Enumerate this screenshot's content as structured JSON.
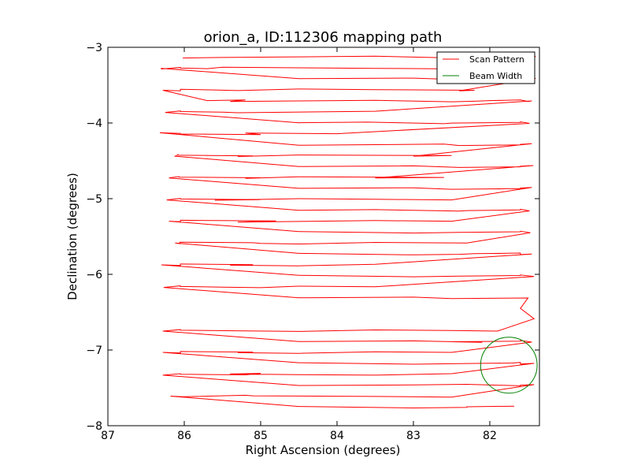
{
  "chart_data": {
    "type": "line",
    "title": "orion_a, ID:112306 mapping path",
    "xlabel": "Right Ascension (degrees)",
    "ylabel": "Declination (degrees)",
    "xlim": [
      87.0,
      81.35
    ],
    "ylim": [
      -8.0,
      -3.0
    ],
    "x_ticks": [
      87,
      86,
      85,
      84,
      83,
      82
    ],
    "y_ticks": [
      -3,
      -4,
      -5,
      -6,
      -7,
      -8
    ],
    "grid": false,
    "legend_position": "top-right",
    "colors": {
      "scan": "#ff0000",
      "beam": "#008000"
    },
    "series": [
      {
        "name": "Scan Pattern",
        "x": [
          86.02,
          85.5,
          84.5,
          83.5,
          82.6,
          82.4,
          81.4,
          82.3,
          83.5,
          84.5,
          85.5,
          85.7,
          86.05,
          86.05,
          86.3,
          86.3,
          84.5,
          83.0,
          82.4,
          81.5,
          81.4,
          82.4,
          82.2,
          83.5,
          84.5,
          85.3,
          85.6,
          86.05,
          86.05,
          86.28,
          85.7,
          85.2,
          85.4,
          84.5,
          83.5,
          82.5,
          82.2,
          82.0,
          81.6,
          81.5,
          81.45,
          83.5,
          85.3,
          85.5,
          86.05,
          86.05,
          86.25,
          84.5,
          83.6,
          82.6,
          82.5,
          81.6,
          81.6,
          81.48,
          84.0,
          85.2,
          85.0,
          86.05,
          86.05,
          86.32,
          84.5,
          83.5,
          82.6,
          82.4,
          81.6,
          81.6,
          81.45,
          83.0,
          82.5,
          84.5,
          85.3,
          85.1,
          86.08,
          86.08,
          86.12,
          84.5,
          83.0,
          82.4,
          81.6,
          81.6,
          81.43,
          83.5,
          82.6,
          84.5,
          85.2,
          85.0,
          86.07,
          86.07,
          86.2,
          84.5,
          83.0,
          82.5,
          81.6,
          81.6,
          81.45,
          82.5,
          83.5,
          84.5,
          85.6,
          85.0,
          86.05,
          86.05,
          86.23,
          84.5,
          83.5,
          82.4,
          82.3,
          81.6,
          81.6,
          81.48,
          82.5,
          83.5,
          85.3,
          85.0,
          84.8,
          86.05,
          86.05,
          86.2,
          84.5,
          83.0,
          82.4,
          81.6,
          81.6,
          81.47,
          82.3,
          83.5,
          84.5,
          85.0,
          85.1,
          86.06,
          86.06,
          86.12,
          84.5,
          83.0,
          82.4,
          82.2,
          81.6,
          81.6,
          81.45,
          83.5,
          84.5,
          85.4,
          85.1,
          86.05,
          86.05,
          86.3,
          84.5,
          83.0,
          82.4,
          81.6,
          81.6,
          81.42,
          83.5,
          84.5,
          85.0,
          85.5,
          86.05,
          86.05,
          86.27,
          84.5,
          83.0,
          82.5,
          81.5,
          81.6,
          81.42,
          81.9,
          82.5,
          83.5,
          84.5,
          85.2,
          86.05,
          86.05,
          86.28,
          84.5,
          83.0,
          82.1,
          82.5,
          81.6,
          81.6,
          81.45,
          82.5,
          83.5,
          84.5,
          85.3,
          85.1,
          86.05,
          86.05,
          86.28,
          84.5,
          83.0,
          82.4,
          81.7,
          81.6,
          81.6,
          81.42,
          82.5,
          83.5,
          84.5,
          85.4,
          85.0,
          85.2,
          86.05,
          86.05,
          86.28,
          84.5,
          83.0,
          82.3,
          81.6,
          81.6,
          81.42,
          82.5,
          83.5,
          85.1,
          85.2,
          86.02,
          86.18,
          84.5,
          83.0,
          82.3,
          82.3,
          81.68
        ]
      }
    ],
    "beam": {
      "name": "Beam Width",
      "center_x": 81.75,
      "center_y": -7.2,
      "radius_deg": 0.37
    }
  }
}
